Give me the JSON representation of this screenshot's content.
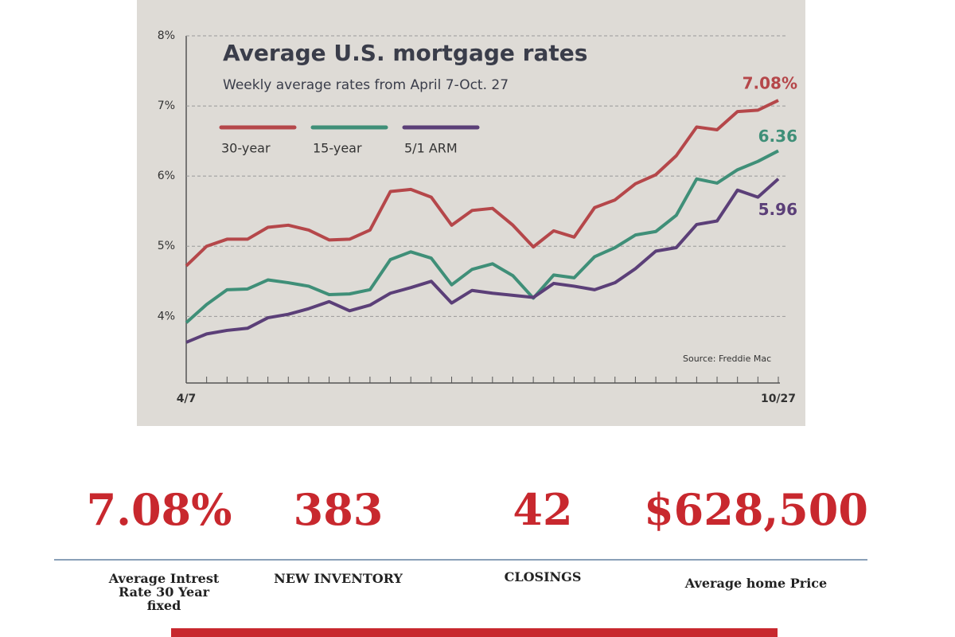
{
  "chart_data": {
    "type": "line",
    "title": "Average U.S. mortgage rates",
    "subtitle": "Weekly average rates from April 7-Oct. 27",
    "annotation": "Source: Freddie Mac",
    "categories": [
      "4/7",
      null,
      null,
      null,
      null,
      null,
      null,
      null,
      null,
      null,
      null,
      null,
      null,
      null,
      null,
      null,
      null,
      null,
      null,
      null,
      null,
      null,
      null,
      null,
      null,
      null,
      null,
      null,
      null,
      "10/27"
    ],
    "series": [
      {
        "name": "30-year",
        "color": "#b5474a",
        "values": [
          4.72,
          5.0,
          5.1,
          5.1,
          5.27,
          5.3,
          5.23,
          5.09,
          5.1,
          5.23,
          5.78,
          5.81,
          5.7,
          5.3,
          5.51,
          5.54,
          5.3,
          4.99,
          5.22,
          5.13,
          5.55,
          5.66,
          5.89,
          6.02,
          6.29,
          6.7,
          6.66,
          6.92,
          6.94,
          7.08
        ],
        "value_labels": [
          null,
          null,
          null,
          null,
          null,
          null,
          null,
          null,
          null,
          null,
          null,
          null,
          null,
          null,
          null,
          null,
          null,
          null,
          null,
          null,
          null,
          null,
          null,
          null,
          null,
          null,
          null,
          null,
          null,
          "7.08%"
        ]
      },
      {
        "name": "15-year",
        "color": "#3f8f78",
        "values": [
          3.91,
          4.17,
          4.38,
          4.39,
          4.52,
          4.48,
          4.43,
          4.31,
          4.32,
          4.38,
          4.81,
          4.92,
          4.83,
          4.45,
          4.67,
          4.75,
          4.58,
          4.26,
          4.59,
          4.55,
          4.85,
          4.98,
          5.16,
          5.21,
          5.44,
          5.96,
          5.9,
          6.09,
          6.21,
          6.36
        ],
        "value_labels": [
          null,
          null,
          null,
          null,
          null,
          null,
          null,
          null,
          null,
          null,
          null,
          null,
          null,
          null,
          null,
          null,
          null,
          null,
          null,
          null,
          null,
          null,
          null,
          null,
          null,
          null,
          null,
          null,
          null,
          "6.36"
        ]
      },
      {
        "name": "5/1 ARM",
        "color": "#5b3f78",
        "values": [
          3.63,
          3.75,
          3.8,
          3.83,
          3.98,
          4.03,
          4.11,
          4.21,
          4.08,
          4.16,
          4.33,
          4.41,
          4.5,
          4.19,
          4.37,
          4.33,
          4.3,
          4.27,
          4.47,
          4.43,
          4.38,
          4.48,
          4.68,
          4.93,
          4.98,
          5.31,
          5.36,
          5.8,
          5.7,
          5.96
        ],
        "value_labels": [
          null,
          null,
          null,
          null,
          null,
          null,
          null,
          null,
          null,
          null,
          null,
          null,
          null,
          null,
          null,
          null,
          null,
          null,
          null,
          null,
          null,
          null,
          null,
          null,
          null,
          null,
          null,
          null,
          null,
          "5.96"
        ]
      }
    ],
    "ylim": [
      3.05,
      8
    ],
    "yticks": [
      {
        "value": 4,
        "label": "4%"
      },
      {
        "value": 5,
        "label": "5%"
      },
      {
        "value": 6,
        "label": "6%"
      },
      {
        "value": 7,
        "label": "7%"
      },
      {
        "value": 8,
        "label": "8%"
      }
    ],
    "grid": true
  },
  "stats": [
    {
      "value": "7.08%",
      "label": "Average Intrest Rate 30 Year fixed"
    },
    {
      "value": "383",
      "label": "NEW INVENTORY"
    },
    {
      "value": "42",
      "label": "CLOSINGS"
    },
    {
      "value": "$628,500",
      "label": "Average home Price"
    }
  ]
}
